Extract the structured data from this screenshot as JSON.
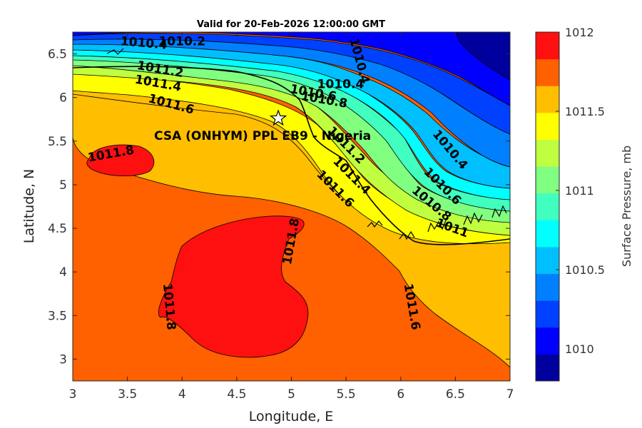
{
  "chart_data": {
    "type": "contour",
    "title": "Valid for 20-Feb-2026 12:00:00 GMT",
    "xlabel": "Longitude, E",
    "ylabel": "Latitude, N",
    "xlim": [
      3,
      7
    ],
    "ylim": [
      2.75,
      6.75
    ],
    "xticks": [
      {
        "value": 3,
        "label": "3"
      },
      {
        "value": 3.5,
        "label": "3.5"
      },
      {
        "value": 4,
        "label": "4"
      },
      {
        "value": 4.5,
        "label": "4.5"
      },
      {
        "value": 5,
        "label": "5"
      },
      {
        "value": 5.5,
        "label": "5.5"
      },
      {
        "value": 6,
        "label": "6"
      },
      {
        "value": 6.5,
        "label": "6.5"
      },
      {
        "value": 7,
        "label": "7"
      }
    ],
    "yticks": [
      {
        "value": 3,
        "label": "3"
      },
      {
        "value": 3.5,
        "label": "3.5"
      },
      {
        "value": 4,
        "label": "4"
      },
      {
        "value": 4.5,
        "label": "4.5"
      },
      {
        "value": 5,
        "label": "5"
      },
      {
        "value": 5.5,
        "label": "5.5"
      },
      {
        "value": 6,
        "label": "6"
      },
      {
        "value": 6.5,
        "label": "6.5"
      }
    ],
    "colorbar": {
      "label": "Surface Pressure, mb",
      "range": [
        1009.8,
        1012
      ],
      "levels": [
        1009.8,
        1009.9,
        1010,
        1010.2,
        1010.4,
        1010.6,
        1010.7,
        1010.8,
        1011,
        1011.2,
        1011.4,
        1011.6,
        1011.8,
        1012
      ],
      "colors": [
        "#00009e",
        "#0000ff",
        "#0040ff",
        "#0080ff",
        "#00bfff",
        "#00ffff",
        "#40ffbf",
        "#80ff80",
        "#bfff40",
        "#ffff00",
        "#ffbf00",
        "#ff6000",
        "#ff1010"
      ],
      "ticks": [
        {
          "value": 1010,
          "label": "1010"
        },
        {
          "value": 1010.5,
          "label": "1010.5"
        },
        {
          "value": 1011,
          "label": "1011"
        },
        {
          "value": 1011.5,
          "label": "1011.5"
        },
        {
          "value": 1012,
          "label": "1012"
        }
      ]
    },
    "contour_labels": [
      {
        "text": "1010.4",
        "x": 3.65,
        "y": 6.62,
        "angle": 5
      },
      {
        "text": "1010.2",
        "x": 4.0,
        "y": 6.64,
        "angle": 0
      },
      {
        "text": "1010.4",
        "x": 5.45,
        "y": 6.15,
        "angle": 0
      },
      {
        "text": "1010.6",
        "x": 5.2,
        "y": 6.05,
        "angle": 10
      },
      {
        "text": "1010.8",
        "x": 5.3,
        "y": 5.97,
        "angle": 10
      },
      {
        "text": "1010.4",
        "x": 5.62,
        "y": 6.42,
        "angle": 75
      },
      {
        "text": "1011.2",
        "x": 3.8,
        "y": 6.32,
        "angle": 10
      },
      {
        "text": "1011.4",
        "x": 3.78,
        "y": 6.16,
        "angle": 10
      },
      {
        "text": "1011.6",
        "x": 3.9,
        "y": 5.92,
        "angle": 15
      },
      {
        "text": "1011.8",
        "x": 3.35,
        "y": 5.35,
        "angle": -10
      },
      {
        "text": "1011.2",
        "x": 5.5,
        "y": 5.45,
        "angle": 45
      },
      {
        "text": "1011.4",
        "x": 5.55,
        "y": 5.1,
        "angle": 45
      },
      {
        "text": "1011.6",
        "x": 5.4,
        "y": 4.95,
        "angle": 45
      },
      {
        "text": "1010.4",
        "x": 6.45,
        "y": 5.4,
        "angle": 50
      },
      {
        "text": "1010.6",
        "x": 6.38,
        "y": 4.98,
        "angle": 45
      },
      {
        "text": "1010.8",
        "x": 6.28,
        "y": 4.78,
        "angle": 40
      },
      {
        "text": "1011",
        "x": 6.47,
        "y": 4.5,
        "angle": 20
      },
      {
        "text": "1011.8",
        "x": 5.0,
        "y": 4.35,
        "angle": -80
      },
      {
        "text": "1011.8",
        "x": 3.88,
        "y": 3.6,
        "angle": 85
      },
      {
        "text": "1011.6",
        "x": 6.1,
        "y": 3.6,
        "angle": 80
      }
    ],
    "stations": [
      {
        "label": "CSA (ONHYM) PPL EB9 - Nigeria",
        "x": 4.88,
        "y": 5.76,
        "marker": "star"
      }
    ]
  }
}
